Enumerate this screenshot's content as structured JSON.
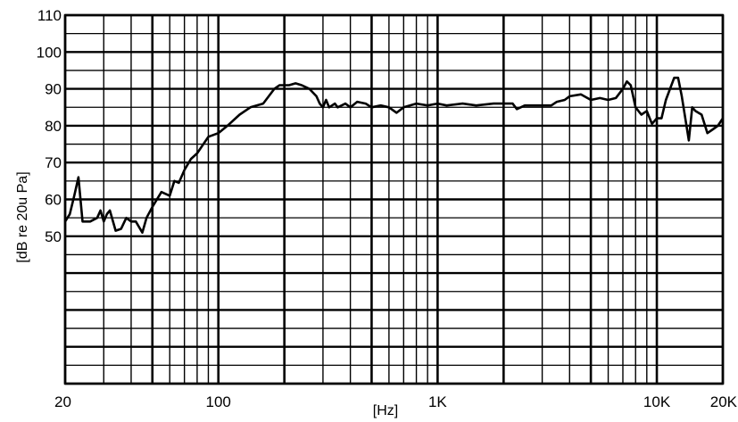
{
  "chart_data": {
    "type": "line",
    "title": "",
    "xlabel": "[Hz]",
    "ylabel": "[dB re 20u Pa]",
    "x_scale": "log",
    "xlim": [
      20,
      20000
    ],
    "ylim": [
      10,
      110
    ],
    "y_ticks": [
      110,
      100,
      90,
      80,
      70,
      60,
      50
    ],
    "x_ticks": [
      {
        "value": 20,
        "label": "20"
      },
      {
        "value": 100,
        "label": "100"
      },
      {
        "value": 1000,
        "label": "1K"
      },
      {
        "value": 10000,
        "label": "10K"
      },
      {
        "value": 20000,
        "label": "20K"
      }
    ],
    "grid": true,
    "line_color": "#000000",
    "series": [
      {
        "x": [
          20,
          21,
          22,
          23,
          24,
          25,
          26,
          28,
          29,
          30,
          31,
          32,
          34,
          36,
          38,
          40,
          42,
          45,
          47,
          50,
          55,
          60,
          63,
          66,
          70,
          75,
          80,
          90,
          100,
          110,
          125,
          140,
          160,
          180,
          190,
          200,
          210,
          225,
          240,
          260,
          280,
          290,
          300,
          310,
          320,
          340,
          350,
          380,
          400,
          430,
          470,
          500,
          550,
          600,
          650,
          700,
          800,
          900,
          1000,
          1100,
          1300,
          1500,
          1800,
          2000,
          2200,
          2300,
          2500,
          3000,
          3300,
          3500,
          3800,
          4000,
          4500,
          5000,
          5500,
          6000,
          6500,
          7000,
          7300,
          7600,
          8000,
          8500,
          9000,
          9500,
          10000,
          10500,
          11000,
          12000,
          12500,
          13000,
          14000,
          14500,
          15000,
          16000,
          17000,
          18000,
          19000,
          20000
        ],
        "y": [
          54,
          56,
          61,
          66,
          54,
          54,
          54,
          55,
          57,
          54,
          56,
          57,
          51.5,
          52,
          55,
          54,
          54,
          51,
          55,
          58,
          62,
          61,
          65,
          64.5,
          68,
          71,
          72.5,
          77,
          78,
          80,
          83,
          85,
          86,
          90,
          91,
          91,
          91,
          91.5,
          91,
          90,
          88,
          86,
          85,
          87,
          85,
          86,
          85,
          86,
          85,
          86.5,
          86,
          85,
          85.5,
          85,
          83.5,
          85,
          86,
          85.5,
          86,
          85.5,
          86,
          85.5,
          86,
          86,
          86,
          84.5,
          85.5,
          85.5,
          85.5,
          86.5,
          87,
          88,
          88.5,
          87,
          87.5,
          87,
          87.5,
          90,
          92,
          91,
          85,
          83,
          84,
          80.5,
          82,
          82,
          87,
          93,
          93,
          88,
          76,
          85,
          84,
          83,
          78,
          79,
          80,
          82
        ]
      }
    ]
  }
}
